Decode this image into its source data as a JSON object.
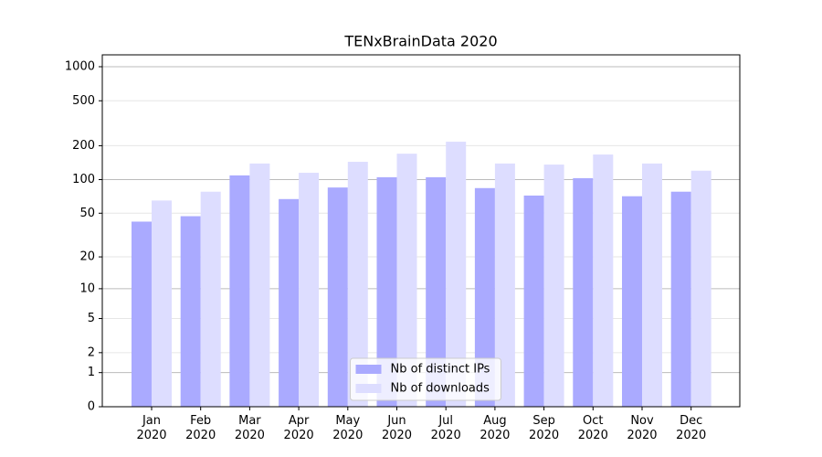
{
  "chart_data": {
    "type": "bar",
    "title": "TENxBrainData 2020",
    "categories": [
      "Jan\n2020",
      "Feb\n2020",
      "Mar\n2020",
      "Apr\n2020",
      "May\n2020",
      "Jun\n2020",
      "Jul\n2020",
      "Aug\n2020",
      "Sep\n2020",
      "Oct\n2020",
      "Nov\n2020",
      "Dec\n2020"
    ],
    "series": [
      {
        "name": "Nb of distinct IPs",
        "color": "#aaaaff",
        "values": [
          42,
          47,
          109,
          67,
          85,
          105,
          105,
          84,
          72,
          103,
          71,
          78
        ]
      },
      {
        "name": "Nb of downloads",
        "color": "#ddddff",
        "values": [
          65,
          78,
          139,
          115,
          144,
          170,
          217,
          139,
          136,
          167,
          139,
          120
        ]
      }
    ],
    "yscale": "log1p",
    "ylim": [
      0,
      1273
    ],
    "yticks": [
      0,
      1,
      2,
      5,
      10,
      20,
      50,
      100,
      200,
      500,
      1000
    ],
    "grid": true,
    "legend": "lower center"
  }
}
